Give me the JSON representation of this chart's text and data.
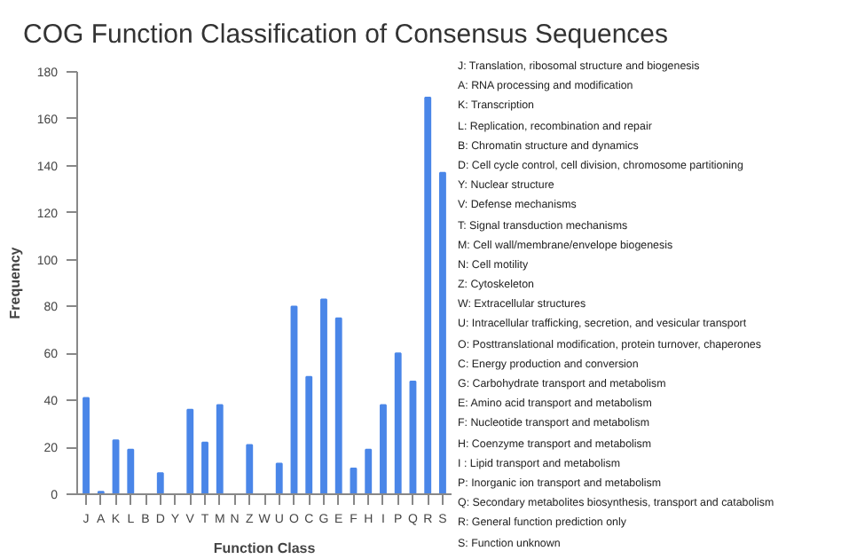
{
  "chart_data": {
    "type": "bar",
    "title": "COG Function Classification of Consensus Sequences",
    "xlabel": "Function Class",
    "ylabel": "Frequency",
    "categories": [
      "J",
      "A",
      "K",
      "L",
      "B",
      "D",
      "Y",
      "V",
      "T",
      "M",
      "N",
      "Z",
      "W",
      "U",
      "O",
      "C",
      "G",
      "E",
      "F",
      "H",
      "I",
      "P",
      "Q",
      "R",
      "S"
    ],
    "values": [
      41,
      1,
      23,
      19,
      0,
      9,
      0,
      36,
      22,
      38,
      0,
      21,
      0,
      13,
      80,
      50,
      83,
      75,
      11,
      19,
      38,
      60,
      48,
      169,
      137
    ],
    "color": "#4a86e8",
    "ylim": [
      0,
      180
    ],
    "yticks": [
      0,
      20,
      40,
      60,
      80,
      100,
      120,
      140,
      160,
      180
    ],
    "grid": false,
    "annotations": [
      "J:  Translation, ribosomal structure and biogenesis",
      "A:  RNA processing and modification",
      "K:  Transcription",
      "L:  Replication, recombination and repair",
      "B:  Chromatin structure and dynamics",
      "D:  Cell cycle control, cell division, chromosome partitioning",
      "Y:  Nuclear structure",
      "V:  Defense mechanisms",
      "T:  Signal transduction mechanisms",
      "M:  Cell wall/membrane/envelope biogenesis",
      "N:  Cell motility",
      "Z:  Cytoskeleton",
      "W:  Extracellular structures",
      "U:  Intracellular trafficking, secretion, and vesicular transport",
      "O:  Posttranslational modification, protein turnover, chaperones",
      "C:  Energy production and conversion",
      "G:  Carbohydrate transport and metabolism",
      "E:  Amino acid transport and metabolism",
      "F:  Nucleotide transport and metabolism",
      "H:  Coenzyme transport and metabolism",
      "I :  Lipid transport and metabolism",
      "P:  Inorganic ion transport and metabolism",
      "Q:  Secondary metabolites biosynthesis, transport and catabolism",
      "R:  General function prediction only",
      "S:  Function unknown"
    ]
  }
}
